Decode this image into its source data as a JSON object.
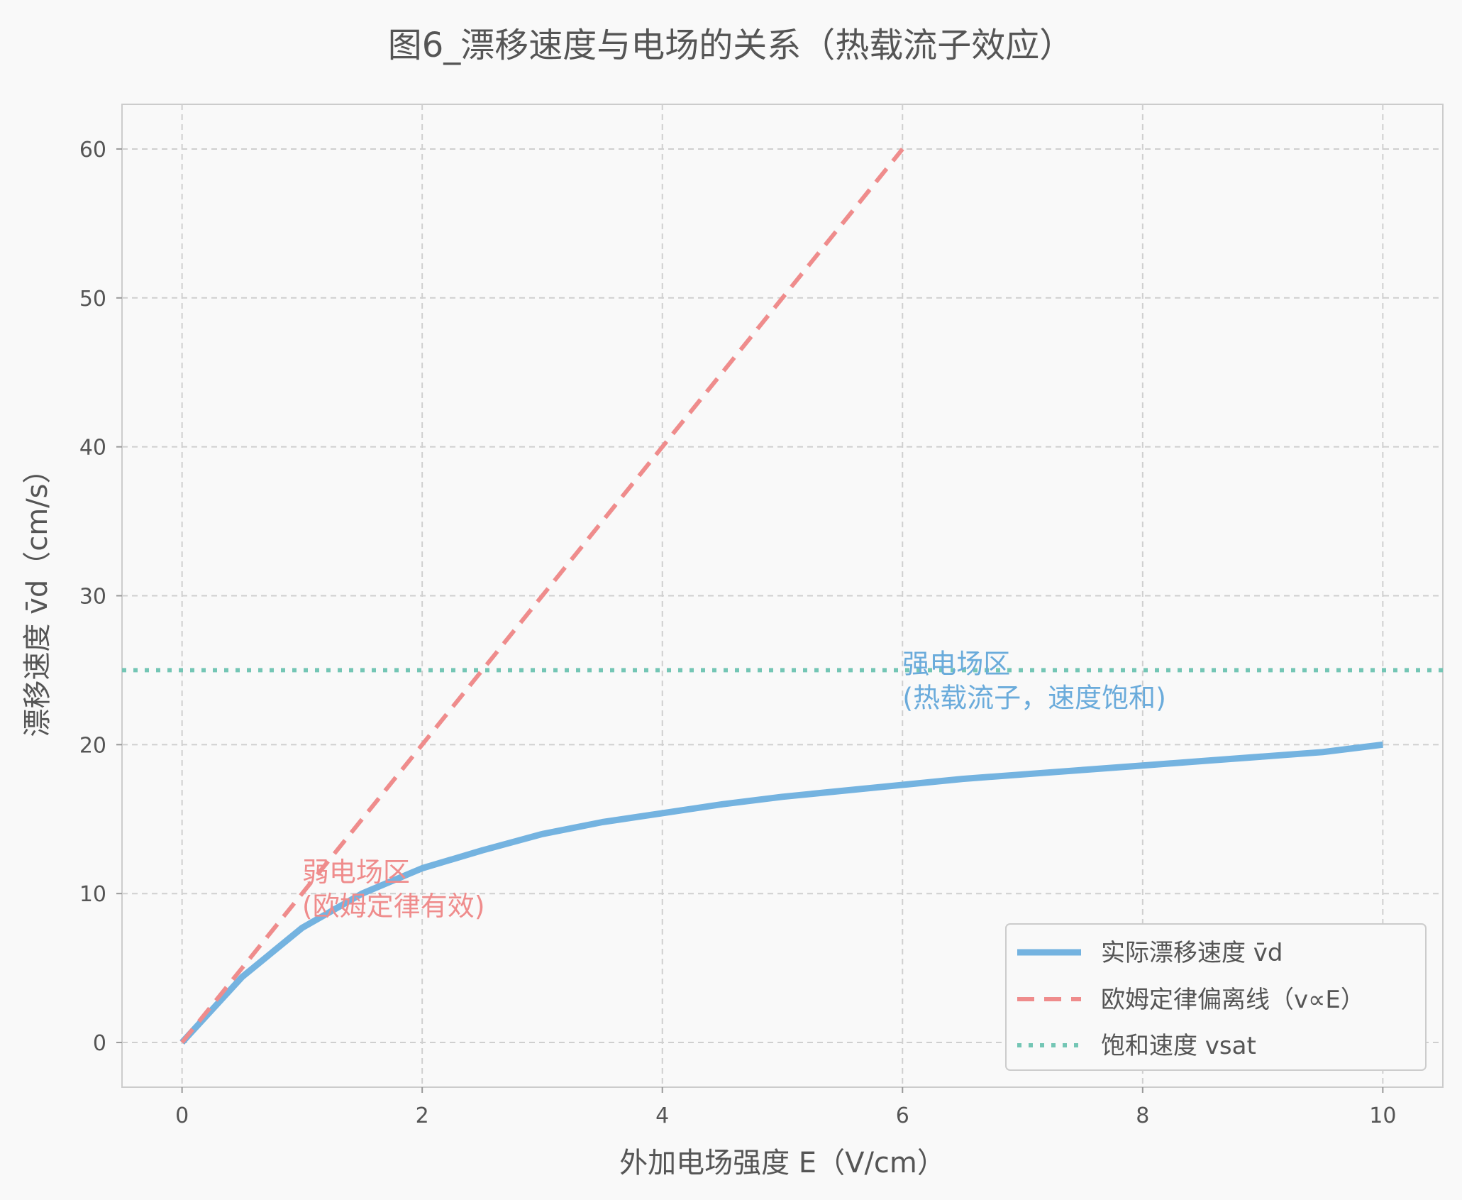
{
  "chart_data": {
    "type": "line",
    "title": "图6_漂移速度与电场的关系（热载流子效应）",
    "xlabel": "外加电场强度 E（V/cm）",
    "ylabel": "漂移速度 v̄d（cm/s）",
    "xlim": [
      -0.5,
      10.5
    ],
    "ylim": [
      -3,
      63
    ],
    "xticks": [
      0,
      2,
      4,
      6,
      8,
      10
    ],
    "yticks": [
      0,
      10,
      20,
      30,
      40,
      50,
      60
    ],
    "grid": true,
    "legend_position": "lower-right",
    "series": [
      {
        "name": "实际漂移速度 v̄d",
        "style": "solid",
        "color": "#74b3e0",
        "x": [
          0,
          0.5,
          1,
          1.5,
          2,
          2.5,
          3,
          3.5,
          4,
          4.5,
          5,
          5.5,
          6,
          6.5,
          7,
          7.5,
          8,
          8.5,
          9,
          9.5,
          10
        ],
        "y": [
          0,
          4.4,
          7.7,
          10.0,
          11.7,
          12.9,
          14.0,
          14.8,
          15.4,
          16.0,
          16.5,
          16.9,
          17.3,
          17.7,
          18.0,
          18.3,
          18.6,
          18.9,
          19.2,
          19.5,
          20.0
        ]
      },
      {
        "name": "欧姆定律偏离线（v∝E）",
        "style": "dashed",
        "color": "#ef8c8c",
        "x": [
          0,
          6
        ],
        "y": [
          0,
          60
        ]
      },
      {
        "name": "饱和速度 vsat",
        "style": "dotted",
        "color": "#74c6b5",
        "hline": 25
      }
    ],
    "annotations": [
      {
        "lines": [
          "弱电场区",
          "(欧姆定律有效)"
        ],
        "x": 1.0,
        "y": 11.0,
        "color": "#ef8c8c"
      },
      {
        "lines": [
          "强电场区",
          "(热载流子，速度饱和)"
        ],
        "x": 6.0,
        "y": 25.0,
        "color": "#6aabdb"
      }
    ]
  }
}
